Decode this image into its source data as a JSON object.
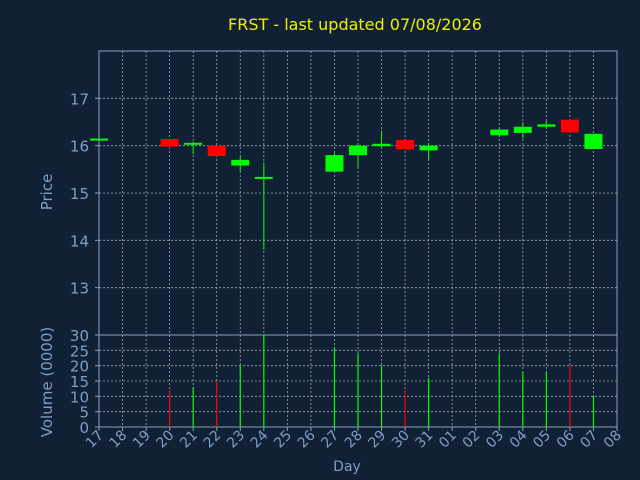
{
  "chart_data": [
    {
      "type": "candlestick",
      "title": "FRST - last updated 07/08/2026",
      "ylabel": "Price",
      "ylim": [
        12,
        18
      ],
      "yticks": [
        13,
        14,
        15,
        16,
        17
      ],
      "grid": true,
      "x": [
        "17",
        "18",
        "19",
        "20",
        "21",
        "22",
        "23",
        "24",
        "25",
        "26",
        "27",
        "28",
        "29",
        "30",
        "31",
        "01",
        "02",
        "03",
        "04",
        "05",
        "06",
        "07",
        "08"
      ],
      "candles": [
        {
          "x": "17",
          "open": 16.15,
          "high": 16.15,
          "low": 16.14,
          "close": 16.15
        },
        {
          "x": "20",
          "open": 16.14,
          "high": 16.14,
          "low": 15.95,
          "close": 15.98
        },
        {
          "x": "21",
          "open": 16.02,
          "high": 16.08,
          "low": 15.82,
          "close": 16.06
        },
        {
          "x": "22",
          "open": 16.0,
          "high": 16.0,
          "low": 15.75,
          "close": 15.78
        },
        {
          "x": "23",
          "open": 15.58,
          "high": 15.78,
          "low": 15.45,
          "close": 15.7
        },
        {
          "x": "24",
          "open": 15.34,
          "high": 15.65,
          "low": 13.8,
          "close": 15.34
        },
        {
          "x": "27",
          "open": 15.45,
          "high": 15.85,
          "low": 15.45,
          "close": 15.8
        },
        {
          "x": "28",
          "open": 15.8,
          "high": 16.05,
          "low": 15.55,
          "close": 16.0
        },
        {
          "x": "29",
          "open": 15.99,
          "high": 16.32,
          "low": 15.95,
          "close": 16.04
        },
        {
          "x": "30",
          "open": 16.12,
          "high": 16.12,
          "low": 15.92,
          "close": 15.92
        },
        {
          "x": "31",
          "open": 15.9,
          "high": 16.06,
          "low": 15.7,
          "close": 16.0
        },
        {
          "x": "03",
          "open": 16.22,
          "high": 16.36,
          "low": 16.18,
          "close": 16.34
        },
        {
          "x": "04",
          "open": 16.27,
          "high": 16.5,
          "low": 16.15,
          "close": 16.4
        },
        {
          "x": "05",
          "open": 16.4,
          "high": 16.52,
          "low": 16.37,
          "close": 16.45
        },
        {
          "x": "06",
          "open": 16.55,
          "high": 16.55,
          "low": 16.26,
          "close": 16.28
        },
        {
          "x": "07",
          "open": 15.93,
          "high": 16.25,
          "low": 15.93,
          "close": 16.25
        }
      ]
    },
    {
      "type": "bar",
      "ylabel": "Volume (0000)",
      "xlabel": "Day",
      "ylim": [
        0,
        30
      ],
      "yticks": [
        0,
        5,
        10,
        15,
        20,
        25,
        30
      ],
      "grid": true,
      "categories": [
        "20",
        "21",
        "22",
        "23",
        "24",
        "27",
        "28",
        "29",
        "30",
        "31",
        "03",
        "04",
        "05",
        "06",
        "07"
      ],
      "values": [
        12,
        13,
        15,
        20,
        30,
        26,
        24,
        20,
        12,
        16,
        24,
        18,
        18,
        20,
        10
      ],
      "direction": [
        "down",
        "up",
        "down",
        "up",
        "up",
        "up",
        "up",
        "up",
        "down",
        "up",
        "up",
        "up",
        "up",
        "down",
        "up"
      ]
    }
  ],
  "colors": {
    "background": "#102035",
    "axis": "#8aa0b8",
    "grid": "#9aa9bb",
    "title": "#f0f000",
    "label": "#7f9fc4",
    "up": "#00ff00",
    "down": "#ff0000"
  }
}
